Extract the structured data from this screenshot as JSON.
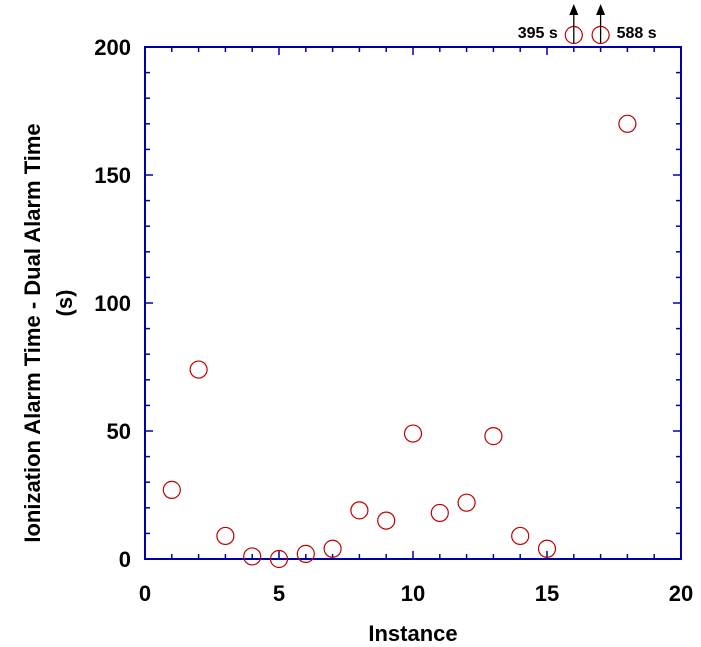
{
  "chart_data": {
    "type": "scatter",
    "xlabel": "Instance",
    "ylabel_line1": "Ionization Alarm Time - Dual Alarm Time",
    "ylabel_line2": "(s)",
    "xlim": [
      0,
      20
    ],
    "ylim": [
      0,
      200
    ],
    "x_ticks": [
      "0",
      "5",
      "10",
      "15",
      "20"
    ],
    "y_ticks": [
      "0",
      "50",
      "100",
      "150",
      "200"
    ],
    "grid": false,
    "marker": "open-circle",
    "colors": {
      "marker": "#c00000",
      "axes": "#0000aa",
      "text": "#000000",
      "arrow": "#000000"
    },
    "series": [
      {
        "x": [
          1,
          2,
          3,
          4,
          5,
          6,
          7,
          8,
          9,
          10,
          11,
          12,
          13,
          14,
          15,
          18
        ],
        "y": [
          27,
          74,
          9,
          1,
          0,
          2,
          4,
          19,
          15,
          49,
          18,
          22,
          48,
          9,
          4,
          170
        ]
      }
    ],
    "off_scale_points": [
      {
        "x": 16,
        "y": 395,
        "label": "395 s",
        "label_side": "left"
      },
      {
        "x": 17,
        "y": 588,
        "label": "588 s",
        "label_side": "right"
      }
    ]
  }
}
